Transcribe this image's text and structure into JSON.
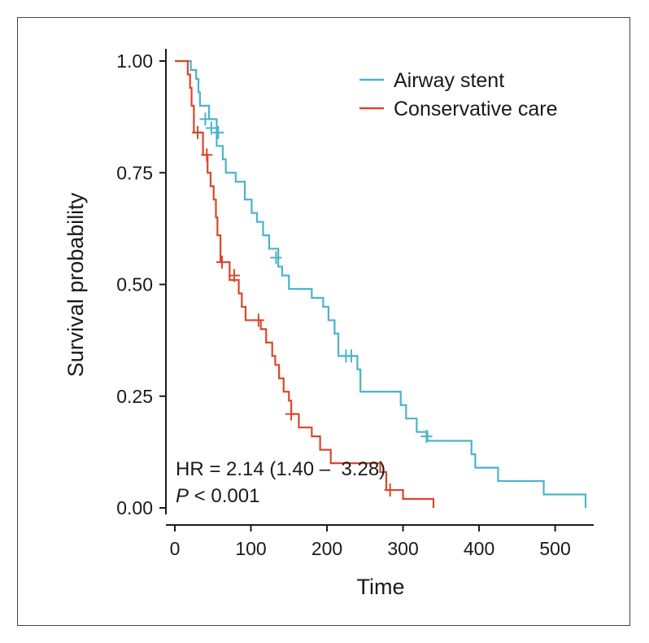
{
  "chart_data": {
    "type": "line",
    "subtype": "kaplan-meier",
    "title": "",
    "xlabel": "Time",
    "ylabel": "Survival probability",
    "xlim": [
      0,
      540
    ],
    "ylim": [
      0,
      1
    ],
    "x_ticks": [
      0,
      100,
      200,
      300,
      400,
      500
    ],
    "y_ticks": [
      "0.00",
      "0.25",
      "0.50",
      "0.75",
      "1.00"
    ],
    "grid": false,
    "legend_position": "top-right",
    "series": [
      {
        "name": "Airway stent",
        "color": "#4bb3cc",
        "steps": [
          [
            0,
            1.0
          ],
          [
            21,
            0.98
          ],
          [
            28,
            0.96
          ],
          [
            31,
            0.93
          ],
          [
            33,
            0.9
          ],
          [
            45,
            0.87
          ],
          [
            55,
            0.81
          ],
          [
            63,
            0.78
          ],
          [
            67,
            0.75
          ],
          [
            80,
            0.73
          ],
          [
            92,
            0.69
          ],
          [
            101,
            0.66
          ],
          [
            108,
            0.64
          ],
          [
            116,
            0.61
          ],
          [
            124,
            0.58
          ],
          [
            136,
            0.54
          ],
          [
            141,
            0.52
          ],
          [
            150,
            0.49
          ],
          [
            180,
            0.47
          ],
          [
            195,
            0.45
          ],
          [
            202,
            0.42
          ],
          [
            210,
            0.39
          ],
          [
            215,
            0.34
          ],
          [
            240,
            0.31
          ],
          [
            244,
            0.26
          ],
          [
            297,
            0.23
          ],
          [
            304,
            0.2
          ],
          [
            318,
            0.17
          ],
          [
            332,
            0.15
          ],
          [
            390,
            0.12
          ],
          [
            395,
            0.09
          ],
          [
            425,
            0.06
          ],
          [
            485,
            0.03
          ],
          [
            540,
            0.0
          ]
        ],
        "censored": [
          [
            40,
            0.87
          ],
          [
            48,
            0.85
          ],
          [
            57,
            0.84
          ],
          [
            133,
            0.56
          ],
          [
            225,
            0.34
          ],
          [
            232,
            0.34
          ],
          [
            331,
            0.16
          ]
        ]
      },
      {
        "name": "Conservative care",
        "color": "#d9472b",
        "steps": [
          [
            0,
            1.0
          ],
          [
            17,
            0.97
          ],
          [
            20,
            0.94
          ],
          [
            22,
            0.9
          ],
          [
            25,
            0.84
          ],
          [
            37,
            0.79
          ],
          [
            43,
            0.75
          ],
          [
            47,
            0.72
          ],
          [
            51,
            0.69
          ],
          [
            54,
            0.65
          ],
          [
            56,
            0.61
          ],
          [
            60,
            0.55
          ],
          [
            72,
            0.51
          ],
          [
            84,
            0.48
          ],
          [
            88,
            0.45
          ],
          [
            93,
            0.42
          ],
          [
            113,
            0.4
          ],
          [
            120,
            0.37
          ],
          [
            128,
            0.34
          ],
          [
            132,
            0.32
          ],
          [
            137,
            0.29
          ],
          [
            143,
            0.26
          ],
          [
            150,
            0.24
          ],
          [
            153,
            0.21
          ],
          [
            163,
            0.18
          ],
          [
            180,
            0.16
          ],
          [
            191,
            0.13
          ],
          [
            205,
            0.1
          ],
          [
            212,
            0.1
          ],
          [
            270,
            0.08
          ],
          [
            278,
            0.04
          ],
          [
            300,
            0.02
          ],
          [
            340,
            0.0
          ]
        ],
        "censored": [
          [
            30,
            0.84
          ],
          [
            42,
            0.79
          ],
          [
            62,
            0.55
          ],
          [
            78,
            0.52
          ],
          [
            110,
            0.42
          ],
          [
            153,
            0.21
          ],
          [
            283,
            0.04
          ]
        ]
      }
    ],
    "annotations": [
      {
        "text_main": "HR = 2.14 (1.40 –  3.28)"
      },
      {
        "text_italic": "P",
        "text_rest": " < 0.001"
      }
    ]
  }
}
